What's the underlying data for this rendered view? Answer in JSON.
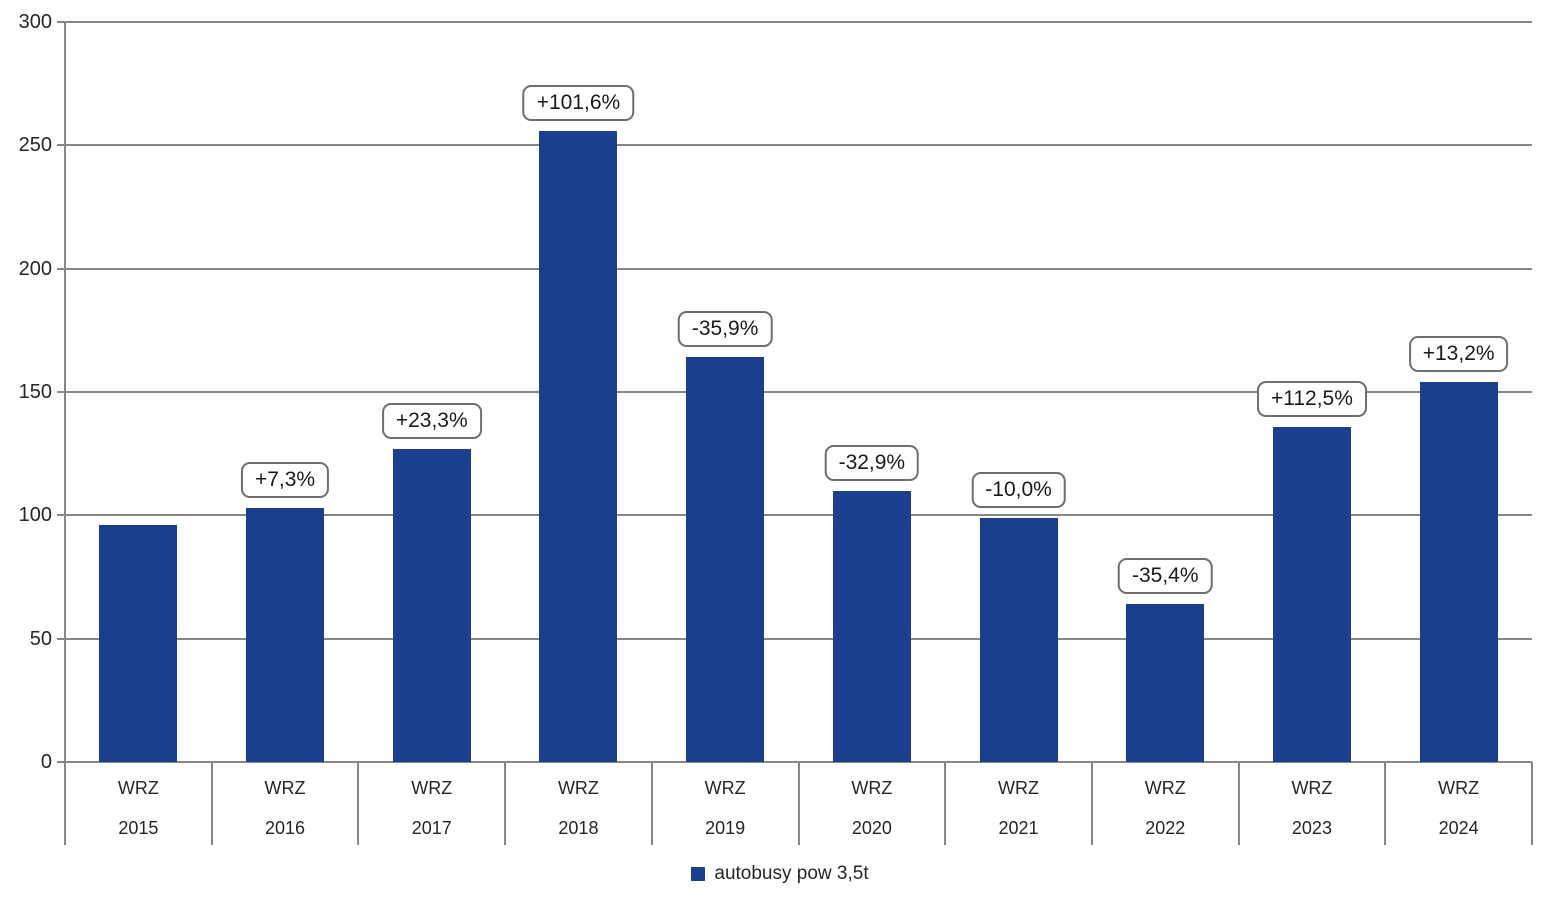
{
  "chart_data": {
    "type": "bar",
    "categories": [
      {
        "line1": "WRZ",
        "line2": "2015"
      },
      {
        "line1": "WRZ",
        "line2": "2016"
      },
      {
        "line1": "WRZ",
        "line2": "2017"
      },
      {
        "line1": "WRZ",
        "line2": "2018"
      },
      {
        "line1": "WRZ",
        "line2": "2019"
      },
      {
        "line1": "WRZ",
        "line2": "2020"
      },
      {
        "line1": "WRZ",
        "line2": "2021"
      },
      {
        "line1": "WRZ",
        "line2": "2022"
      },
      {
        "line1": "WRZ",
        "line2": "2023"
      },
      {
        "line1": "WRZ",
        "line2": "2024"
      }
    ],
    "values": [
      96,
      103,
      127,
      256,
      164,
      110,
      99,
      64,
      136,
      154
    ],
    "bar_labels": [
      "",
      "+7,3%",
      "+23,3%",
      "+101,6%",
      "-35,9%",
      "-32,9%",
      "-10,0%",
      "-35,4%",
      "+112,5%",
      "+13,2%"
    ],
    "legend": "autobusy pow 3,5t",
    "legend_position": "bottom",
    "title": "",
    "xlabel": "",
    "ylabel": "",
    "ylim": [
      0,
      300
    ],
    "y_ticks": [
      0,
      50,
      100,
      150,
      200,
      250,
      300
    ],
    "grid": true,
    "colors": {
      "bar": "#1c3e8e",
      "grid": "#868686",
      "label_border": "#6e6e6e",
      "text": "#262626"
    }
  }
}
